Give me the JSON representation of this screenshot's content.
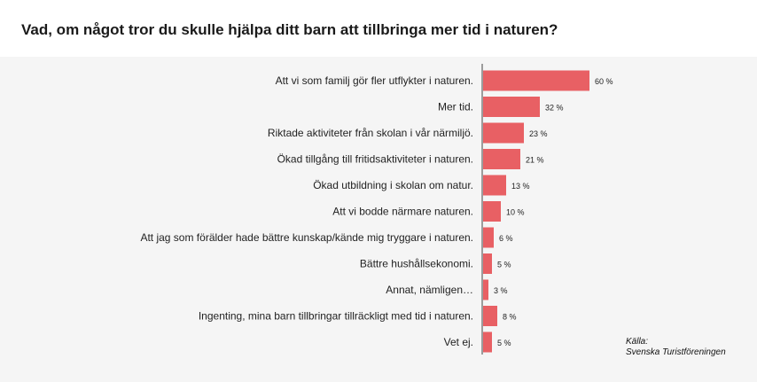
{
  "title": "Vad, om något tror du skulle hjälpa ditt barn att tillbringa mer tid i naturen?",
  "source": {
    "label": "Källa:",
    "name": "Svenska Turistföreningen"
  },
  "colors": {
    "bar": "#e86064",
    "axis": "#444444",
    "background": "#f5f5f5",
    "header": "#ffffff"
  },
  "chart_data": {
    "type": "bar",
    "orientation": "horizontal",
    "title": "Vad, om något tror du skulle hjälpa ditt barn att tillbringa mer tid i naturen?",
    "value_suffix": " %",
    "xlim": [
      0,
      60
    ],
    "grid": false,
    "categories": [
      "Att vi som familj gör fler utflykter i naturen.",
      "Mer tid.",
      "Riktade aktiviteter från skolan i vår närmiljö.",
      "Ökad tillgång till fritidsaktiviteter i naturen.",
      "Ökad utbildning i skolan om natur.",
      "Att vi bodde närmare naturen.",
      "Att jag som förälder hade bättre kunskap/kände mig tryggare i naturen.",
      "Bättre hushållsekonomi.",
      "Annat, nämligen…",
      "Ingenting, mina barn tillbringar tillräckligt med tid i naturen.",
      "Vet ej."
    ],
    "values": [
      60,
      32,
      23,
      21,
      13,
      10,
      6,
      5,
      3,
      8,
      5
    ]
  }
}
